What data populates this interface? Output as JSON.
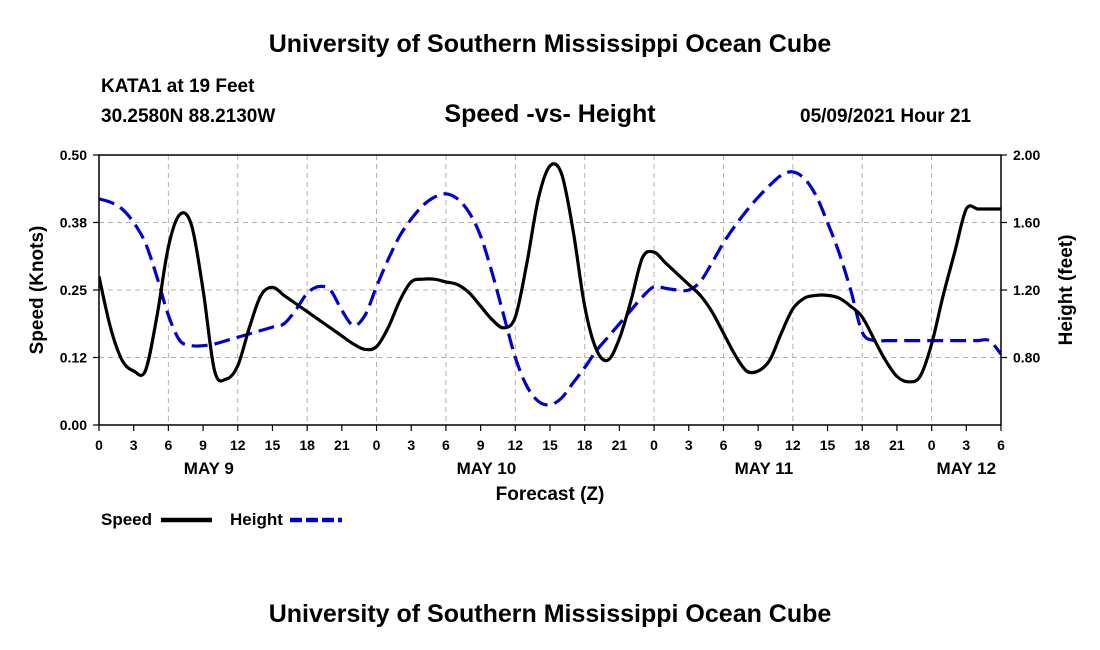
{
  "header": {
    "title": "University of Southern Mississippi Ocean Cube",
    "station": "KATA1 at 19 Feet",
    "coords": "30.2580N  88.2130W",
    "subtitle": "Speed -vs- Height",
    "datetime": "05/09/2021 Hour 21"
  },
  "footer": {
    "title": "University of Southern Mississippi Ocean Cube"
  },
  "chart_data": {
    "type": "line",
    "title": "Speed -vs- Height",
    "xlabel": "Forecast (Z)",
    "ylabel": "Speed (Knots)",
    "y2label": "Height (feet)",
    "xlim": [
      0,
      78
    ],
    "ylim": [
      0,
      0.5
    ],
    "y2lim": [
      0.4,
      2.0
    ],
    "yticks": [
      0.0,
      0.125,
      0.25,
      0.375,
      0.5
    ],
    "ytick_labels": [
      "0.00",
      "0.12",
      "0.25",
      "0.38",
      "0.50"
    ],
    "y2ticks": [
      0.8,
      1.2,
      1.6,
      2.0
    ],
    "y2tick_labels": [
      "0.80",
      "1.20",
      "1.60",
      "2.00"
    ],
    "xtick_labels": [
      "0",
      "3",
      "6",
      "9",
      "12",
      "15",
      "18",
      "21",
      "0",
      "3",
      "6",
      "9",
      "12",
      "15",
      "18",
      "21",
      "0",
      "3",
      "6",
      "9",
      "12",
      "15",
      "18",
      "21",
      "0",
      "3",
      "6"
    ],
    "day_labels": [
      {
        "text": "MAY 9",
        "hour": 9.5
      },
      {
        "text": "MAY 10",
        "hour": 33.5
      },
      {
        "text": "MAY 11",
        "hour": 57.5
      },
      {
        "text": "MAY 12",
        "hour": 75
      }
    ],
    "grid": true,
    "legend": [
      {
        "name": "Speed",
        "color": "#000000",
        "style": "solid"
      },
      {
        "name": "Height",
        "color": "#0000cc",
        "style": "dashed"
      }
    ],
    "x": [
      0,
      1,
      2,
      3,
      4,
      5,
      6,
      7,
      8,
      9,
      10,
      11,
      12,
      13,
      14,
      15,
      16,
      17,
      18,
      19,
      20,
      21,
      22,
      23,
      24,
      25,
      26,
      27,
      28,
      29,
      30,
      31,
      32,
      33,
      34,
      35,
      36,
      37,
      38,
      39,
      40,
      41,
      42,
      43,
      44,
      45,
      46,
      47,
      48,
      49,
      50,
      51,
      52,
      53,
      54,
      55,
      56,
      57,
      58,
      59,
      60,
      61,
      62,
      63,
      64,
      65,
      66,
      67,
      68,
      69,
      70,
      71,
      72,
      73,
      74,
      75,
      76,
      77,
      78
    ],
    "series": [
      {
        "name": "Speed",
        "axis": "left",
        "color": "#000000",
        "style": "solid",
        "values": [
          0.275,
          0.18,
          0.12,
          0.1,
          0.1,
          0.2,
          0.33,
          0.39,
          0.37,
          0.25,
          0.1,
          0.085,
          0.11,
          0.18,
          0.24,
          0.255,
          0.24,
          0.225,
          0.21,
          0.195,
          0.18,
          0.165,
          0.15,
          0.14,
          0.145,
          0.18,
          0.23,
          0.265,
          0.27,
          0.27,
          0.265,
          0.26,
          0.245,
          0.22,
          0.195,
          0.18,
          0.2,
          0.3,
          0.42,
          0.48,
          0.465,
          0.36,
          0.22,
          0.14,
          0.12,
          0.16,
          0.23,
          0.31,
          0.32,
          0.3,
          0.28,
          0.26,
          0.24,
          0.21,
          0.17,
          0.13,
          0.1,
          0.1,
          0.12,
          0.17,
          0.215,
          0.235,
          0.24,
          0.24,
          0.235,
          0.22,
          0.2,
          0.16,
          0.12,
          0.09,
          0.08,
          0.09,
          0.15,
          0.24,
          0.32,
          0.4,
          0.4,
          0.4,
          0.4
        ]
      },
      {
        "name": "Height",
        "axis": "right",
        "color": "#0000cc",
        "style": "dashed",
        "values": [
          1.74,
          1.72,
          1.68,
          1.6,
          1.48,
          1.28,
          1.05,
          0.9,
          0.87,
          0.87,
          0.88,
          0.9,
          0.92,
          0.94,
          0.96,
          0.98,
          1.0,
          1.08,
          1.18,
          1.22,
          1.2,
          1.08,
          0.99,
          1.05,
          1.22,
          1.38,
          1.52,
          1.62,
          1.7,
          1.75,
          1.77,
          1.74,
          1.66,
          1.52,
          1.3,
          1.05,
          0.8,
          0.63,
          0.54,
          0.52,
          0.56,
          0.65,
          0.74,
          0.84,
          0.92,
          1.0,
          1.08,
          1.16,
          1.22,
          1.21,
          1.2,
          1.2,
          1.25,
          1.36,
          1.48,
          1.58,
          1.67,
          1.75,
          1.82,
          1.88,
          1.9,
          1.86,
          1.76,
          1.6,
          1.42,
          1.2,
          0.95,
          0.9,
          0.9,
          0.9,
          0.9,
          0.9,
          0.9,
          0.9,
          0.9,
          0.9,
          0.9,
          0.9,
          0.82
        ]
      }
    ]
  }
}
